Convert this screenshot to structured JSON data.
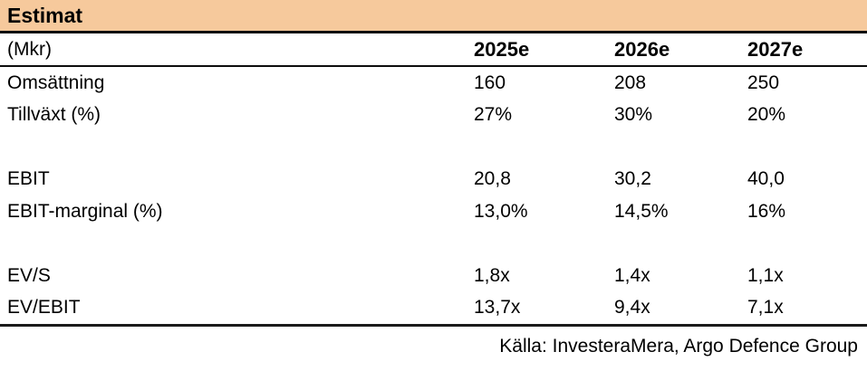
{
  "table": {
    "title": "Estimat",
    "header": {
      "label": "(Mkr)",
      "columns": [
        "2025e",
        "2026e",
        "2027e"
      ]
    },
    "rows": [
      {
        "label": "Omsättning",
        "values": [
          "160",
          "208",
          "250"
        ]
      },
      {
        "label": "Tillväxt (%)",
        "values": [
          "27%",
          "30%",
          "20%"
        ]
      },
      {
        "label": "",
        "values": [
          "",
          "",
          ""
        ]
      },
      {
        "label": "EBIT",
        "values": [
          "20,8",
          "30,2",
          "40,0"
        ]
      },
      {
        "label": "EBIT-marginal (%)",
        "values": [
          "13,0%",
          "14,5%",
          "16%"
        ]
      },
      {
        "label": "",
        "values": [
          "",
          "",
          ""
        ]
      },
      {
        "label": "EV/S",
        "values": [
          "1,8x",
          "1,4x",
          "1,1x"
        ]
      },
      {
        "label": "EV/EBIT",
        "values": [
          "13,7x",
          "9,4x",
          "7,1x"
        ]
      }
    ],
    "source": "Källa: InvesteraMera, Argo Defence Group"
  },
  "colors": {
    "header_bg": "#F6C99C",
    "border": "#0d0d0d",
    "text": "#000000"
  },
  "chart_data": {
    "type": "table",
    "title": "Estimat",
    "unit": "Mkr",
    "columns": [
      "2025e",
      "2026e",
      "2027e"
    ],
    "rows": [
      {
        "label": "Omsättning",
        "values": [
          160,
          208,
          250
        ]
      },
      {
        "label": "Tillväxt (%)",
        "values": [
          "27%",
          "30%",
          "20%"
        ]
      },
      {
        "label": "EBIT",
        "values": [
          "20,8",
          "30,2",
          "40,0"
        ]
      },
      {
        "label": "EBIT-marginal (%)",
        "values": [
          "13,0%",
          "14,5%",
          "16%"
        ]
      },
      {
        "label": "EV/S",
        "values": [
          "1,8x",
          "1,4x",
          "1,1x"
        ]
      },
      {
        "label": "EV/EBIT",
        "values": [
          "13,7x",
          "9,4x",
          "7,1x"
        ]
      }
    ],
    "source": "Källa: InvesteraMera, Argo Defence Group"
  }
}
